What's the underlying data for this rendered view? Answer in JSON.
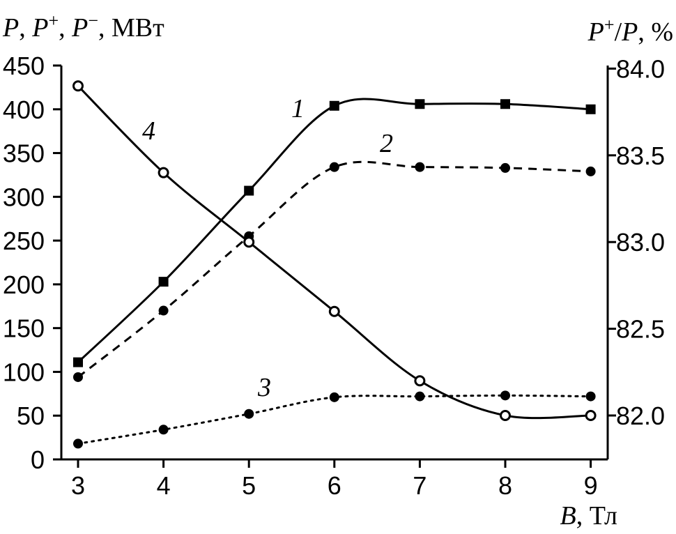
{
  "chart_data": {
    "type": "line",
    "x": [
      3,
      4,
      5,
      6,
      7,
      8,
      9
    ],
    "xlim": [
      2.8,
      9.2
    ],
    "ylim_left": [
      0,
      450
    ],
    "ylim_right": [
      81.75,
      84.0
    ],
    "x_ticks": [
      "3",
      "4",
      "5",
      "6",
      "7",
      "8",
      "9"
    ],
    "y_left_ticks": [
      "0",
      "50",
      "100",
      "150",
      "200",
      "250",
      "300",
      "350",
      "400",
      "450"
    ],
    "y_right_ticks": [
      "82.0",
      "82.5",
      "83.0",
      "83.5",
      "84.0"
    ],
    "y_left_tick_values": [
      0,
      50,
      100,
      150,
      200,
      250,
      300,
      350,
      400,
      450
    ],
    "y_right_tick_values": [
      82.0,
      82.5,
      83.0,
      83.5,
      84.0
    ],
    "x_tick_values": [
      3,
      4,
      5,
      6,
      7,
      8,
      9
    ],
    "series": [
      {
        "label": "1",
        "axis": "left",
        "style": "solid",
        "marker": "square-filled",
        "values": [
          111,
          203,
          307,
          404,
          406,
          406,
          400
        ]
      },
      {
        "label": "2",
        "axis": "left",
        "style": "dashed",
        "marker": "circle-filled",
        "values": [
          94,
          170,
          255,
          334,
          334,
          333,
          329
        ]
      },
      {
        "label": "3",
        "axis": "left",
        "style": "dotted",
        "marker": "circle-filled",
        "values": [
          18,
          34,
          52,
          71,
          72,
          73,
          72
        ]
      },
      {
        "label": "4",
        "axis": "right",
        "style": "solid",
        "marker": "circle-open",
        "values": [
          83.9,
          83.4,
          83.0,
          82.6,
          82.2,
          82.0,
          82.0
        ]
      }
    ],
    "grid": false
  },
  "left_axis_title": {
    "p": "P",
    "sep1": ", ",
    "pplus": "P",
    "plus": "+",
    "sep2": ", ",
    "pminus": "P",
    "minus": "−",
    "unit": ", МВт"
  },
  "right_axis_title": {
    "pplus": "P",
    "plus": "+",
    "slash": "/",
    "p": "P",
    "unit": ", %"
  },
  "x_axis_title": {
    "b": "B",
    "unit": ", Тл"
  },
  "colors": {
    "ink": "#000000",
    "background": "#ffffff"
  }
}
